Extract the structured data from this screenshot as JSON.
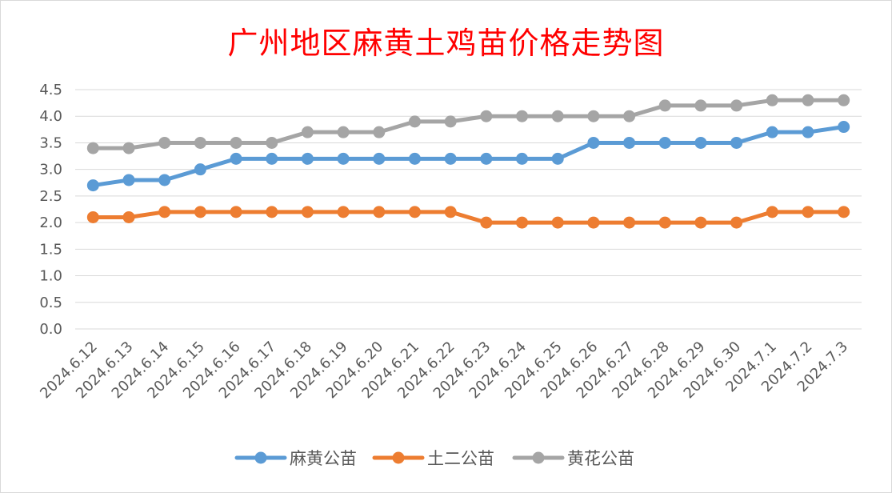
{
  "chart_data": {
    "type": "line",
    "title": "广州地区麻黄土鸡苗价格走势图",
    "title_color": "#ff0000",
    "xlabel": "",
    "ylabel": "",
    "ylim": [
      0,
      4.5
    ],
    "yticks": [
      "0.0",
      "0.5",
      "1.0",
      "1.5",
      "2.0",
      "2.5",
      "3.0",
      "3.5",
      "4.0",
      "4.5"
    ],
    "grid": true,
    "legend_position": "bottom",
    "categories": [
      "2024.6.12",
      "2024.6.13",
      "2024.6.14",
      "2024.6.15",
      "2024.6.16",
      "2024.6.17",
      "2024.6.18",
      "2024.6.19",
      "2024.6.20",
      "2024.6.21",
      "2024.6.22",
      "2024.6.23",
      "2024.6.24",
      "2024.6.25",
      "2024.6.26",
      "2024.6.27",
      "2024.6.28",
      "2024.6.29",
      "2024.6.30",
      "2024.7.1",
      "2024.7.2",
      "2024.7.3"
    ],
    "series": [
      {
        "name": "麻黄公苗",
        "color": "#5b9bd5",
        "values": [
          2.7,
          2.8,
          2.8,
          3.0,
          3.2,
          3.2,
          3.2,
          3.2,
          3.2,
          3.2,
          3.2,
          3.2,
          3.2,
          3.2,
          3.5,
          3.5,
          3.5,
          3.5,
          3.5,
          3.7,
          3.7,
          3.8
        ]
      },
      {
        "name": "土二公苗",
        "color": "#ed7d31",
        "values": [
          2.1,
          2.1,
          2.2,
          2.2,
          2.2,
          2.2,
          2.2,
          2.2,
          2.2,
          2.2,
          2.2,
          2.0,
          2.0,
          2.0,
          2.0,
          2.0,
          2.0,
          2.0,
          2.0,
          2.2,
          2.2,
          2.2
        ]
      },
      {
        "name": "黄花公苗",
        "color": "#a5a5a5",
        "values": [
          3.4,
          3.4,
          3.5,
          3.5,
          3.5,
          3.5,
          3.7,
          3.7,
          3.7,
          3.9,
          3.9,
          4.0,
          4.0,
          4.0,
          4.0,
          4.0,
          4.2,
          4.2,
          4.2,
          4.3,
          4.3,
          4.3
        ]
      }
    ]
  }
}
